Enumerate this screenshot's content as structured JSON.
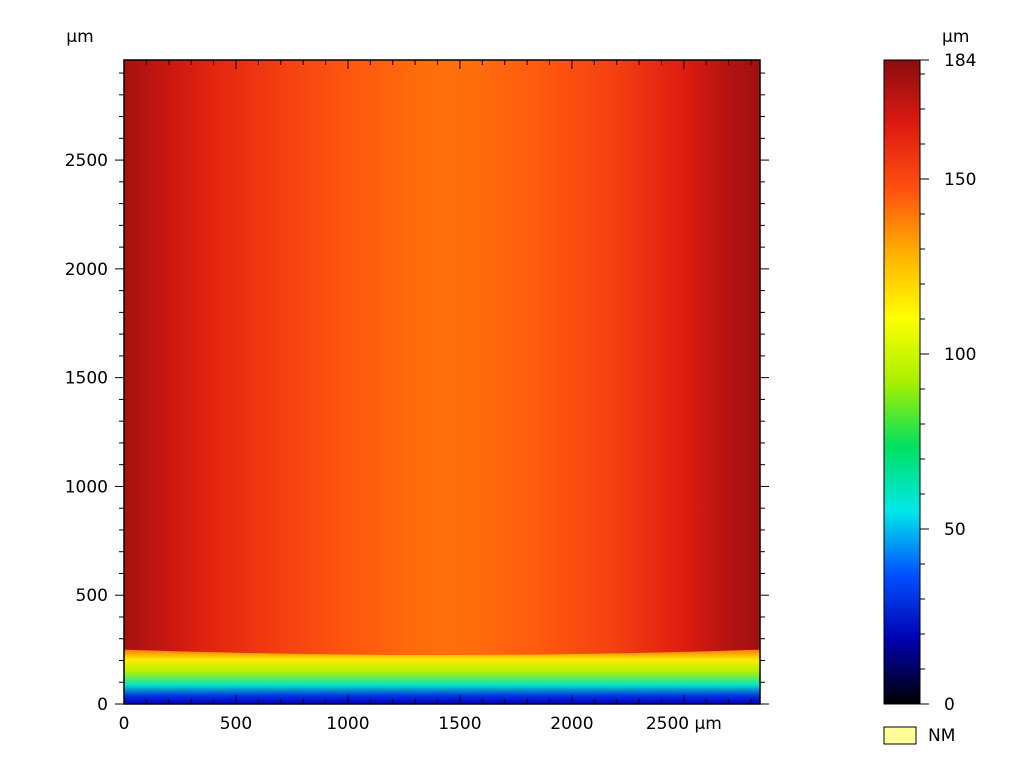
{
  "chart_data": {
    "type": "heatmap",
    "x_unit": "µm",
    "y_unit": "µm",
    "xlim": [
      0,
      2840
    ],
    "ylim": [
      0,
      2960
    ],
    "x_ticks": [
      0,
      500,
      1000,
      1500,
      2000,
      2500
    ],
    "x_tick_labels": [
      "0",
      "500",
      "1000",
      "1500",
      "2000",
      "2500 µm"
    ],
    "y_ticks": [
      0,
      500,
      1000,
      1500,
      2000,
      2500
    ],
    "y_tick_labels": [
      "0",
      "500",
      "1000",
      "1500",
      "2000",
      "2500"
    ],
    "y_axis_unit_label": "µm",
    "colorbar": {
      "unit_label": "µm",
      "min": 0,
      "max": 184,
      "ticks": [
        0,
        50,
        100,
        150,
        184
      ],
      "tick_labels": [
        "0",
        "50",
        "100",
        "150",
        "184"
      ],
      "colormap": [
        "#000000",
        "#0000b0",
        "#0050ff",
        "#00e8e8",
        "#00e060",
        "#a8f000",
        "#ffff00",
        "#ffb000",
        "#ff5010",
        "#dd1a10",
        "#8c0d10"
      ]
    },
    "legend": {
      "label": "NM",
      "color": "#ffff99",
      "placement": "bottom-right"
    },
    "surface_profile": {
      "x": [
        0,
        200,
        400,
        700,
        1000,
        1300,
        1420,
        1600,
        1900,
        2200,
        2500,
        2700,
        2840
      ],
      "height_um": [
        178,
        170,
        162,
        153,
        146,
        142,
        141,
        142,
        146,
        153,
        165,
        175,
        180
      ]
    },
    "edge_band": {
      "description_values": "height ramps from ~20 µm at y≈0 up to plateau at y≈240, edge curved (lower at center)",
      "y_top_at_edges": 250,
      "y_top_at_center": 225,
      "height_at_bottom_center": 20,
      "height_at_bottom_edges": 45
    }
  }
}
